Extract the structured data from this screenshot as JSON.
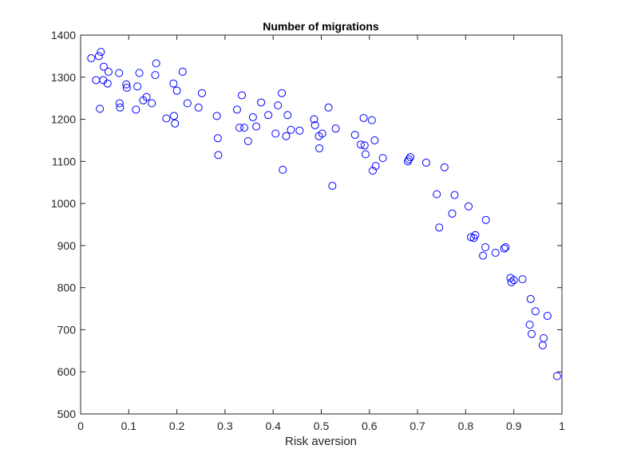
{
  "chart_data": {
    "type": "scatter",
    "title": "Number of migrations",
    "xlabel": "Risk aversion",
    "ylabel": "",
    "xlim": [
      0,
      1
    ],
    "ylim": [
      500,
      1400
    ],
    "xticks": [
      0,
      0.1,
      0.2,
      0.3,
      0.4,
      0.5,
      0.6,
      0.7,
      0.8,
      0.9,
      1
    ],
    "xtick_labels": [
      "0",
      "0.1",
      "0.2",
      "0.3",
      "0.4",
      "0.5",
      "0.6",
      "0.7",
      "0.8",
      "0.9",
      "1"
    ],
    "yticks": [
      500,
      600,
      700,
      800,
      900,
      1000,
      1100,
      1200,
      1300,
      1400
    ],
    "ytick_labels": [
      "500",
      "600",
      "700",
      "800",
      "900",
      "1000",
      "1100",
      "1200",
      "1300",
      "1400"
    ],
    "grid": false,
    "marker": "circle-open",
    "marker_color": "#0000ff",
    "axis_color": "#262626",
    "series": [
      {
        "points": [
          [
            0.022,
            1345
          ],
          [
            0.032,
            1293
          ],
          [
            0.038,
            1350
          ],
          [
            0.042,
            1360
          ],
          [
            0.04,
            1225
          ],
          [
            0.047,
            1293
          ],
          [
            0.048,
            1325
          ],
          [
            0.056,
            1285
          ],
          [
            0.058,
            1313
          ],
          [
            0.08,
            1310
          ],
          [
            0.081,
            1238
          ],
          [
            0.082,
            1228
          ],
          [
            0.095,
            1283
          ],
          [
            0.096,
            1275
          ],
          [
            0.115,
            1223
          ],
          [
            0.118,
            1278
          ],
          [
            0.122,
            1310
          ],
          [
            0.13,
            1245
          ],
          [
            0.137,
            1253
          ],
          [
            0.148,
            1238
          ],
          [
            0.155,
            1305
          ],
          [
            0.157,
            1333
          ],
          [
            0.178,
            1202
          ],
          [
            0.193,
            1285
          ],
          [
            0.194,
            1208
          ],
          [
            0.196,
            1190
          ],
          [
            0.2,
            1268
          ],
          [
            0.212,
            1313
          ],
          [
            0.222,
            1238
          ],
          [
            0.245,
            1228
          ],
          [
            0.252,
            1262
          ],
          [
            0.283,
            1208
          ],
          [
            0.285,
            1155
          ],
          [
            0.286,
            1115
          ],
          [
            0.325,
            1223
          ],
          [
            0.33,
            1180
          ],
          [
            0.335,
            1257
          ],
          [
            0.34,
            1180
          ],
          [
            0.348,
            1148
          ],
          [
            0.358,
            1205
          ],
          [
            0.365,
            1183
          ],
          [
            0.375,
            1240
          ],
          [
            0.39,
            1210
          ],
          [
            0.405,
            1166
          ],
          [
            0.41,
            1233
          ],
          [
            0.418,
            1262
          ],
          [
            0.42,
            1080
          ],
          [
            0.427,
            1160
          ],
          [
            0.43,
            1210
          ],
          [
            0.437,
            1175
          ],
          [
            0.455,
            1173
          ],
          [
            0.485,
            1200
          ],
          [
            0.487,
            1186
          ],
          [
            0.495,
            1160
          ],
          [
            0.496,
            1131
          ],
          [
            0.502,
            1166
          ],
          [
            0.515,
            1228
          ],
          [
            0.523,
            1042
          ],
          [
            0.53,
            1178
          ],
          [
            0.57,
            1163
          ],
          [
            0.582,
            1140
          ],
          [
            0.588,
            1203
          ],
          [
            0.59,
            1138
          ],
          [
            0.592,
            1117
          ],
          [
            0.605,
            1198
          ],
          [
            0.607,
            1078
          ],
          [
            0.611,
            1150
          ],
          [
            0.613,
            1089
          ],
          [
            0.628,
            1108
          ],
          [
            0.68,
            1100
          ],
          [
            0.682,
            1105
          ],
          [
            0.685,
            1110
          ],
          [
            0.718,
            1097
          ],
          [
            0.74,
            1022
          ],
          [
            0.745,
            943
          ],
          [
            0.756,
            1086
          ],
          [
            0.772,
            976
          ],
          [
            0.777,
            1020
          ],
          [
            0.806,
            993
          ],
          [
            0.811,
            920
          ],
          [
            0.817,
            918
          ],
          [
            0.82,
            925
          ],
          [
            0.836,
            876
          ],
          [
            0.841,
            896
          ],
          [
            0.842,
            961
          ],
          [
            0.862,
            883
          ],
          [
            0.88,
            893
          ],
          [
            0.883,
            896
          ],
          [
            0.893,
            823
          ],
          [
            0.895,
            813
          ],
          [
            0.9,
            818
          ],
          [
            0.918,
            820
          ],
          [
            0.933,
            712
          ],
          [
            0.935,
            773
          ],
          [
            0.937,
            690
          ],
          [
            0.945,
            744
          ],
          [
            0.96,
            663
          ],
          [
            0.962,
            680
          ],
          [
            0.97,
            733
          ],
          [
            0.99,
            590
          ]
        ]
      }
    ]
  }
}
